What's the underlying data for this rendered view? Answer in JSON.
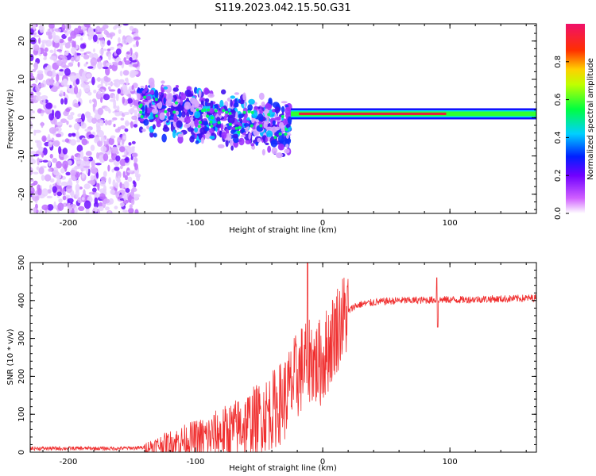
{
  "title": "S119.2023.042.15.50.G31",
  "colors": {
    "snr_line": "#f03030",
    "spectrum_line": "#e81e3c",
    "frame": "#000000"
  },
  "chart_data": [
    {
      "type": "heatmap",
      "xlabel": "Height of straight line (km)",
      "ylabel": "Frequency (Hz)",
      "xlim": [
        -230,
        168
      ],
      "ylim": [
        -25,
        24.5
      ],
      "xticks": [
        -200,
        -100,
        0,
        100
      ],
      "yticks": [
        -20,
        -10,
        0,
        10,
        20
      ],
      "colorbar": {
        "label": "Normalized spectral amplitude",
        "range": [
          0,
          1
        ],
        "ticks": [
          0.0,
          0.2,
          0.4,
          0.6,
          0.8
        ],
        "tick_labels": [
          "0.0",
          "0.2",
          "0.4",
          "0.6",
          "0.8"
        ],
        "colormap": "hsv-like: white, violet, blue, cyan, green, yellow, orange, red, pink"
      },
      "features": {
        "noise_region_x": [
          -230,
          -145
        ],
        "transition_band_x": [
          -145,
          -25
        ],
        "transition_band_freq_start_hz": 3,
        "transition_band_freq_end_hz": -3,
        "carrier_line_x": [
          -25,
          168
        ],
        "carrier_line_freq_hz": 1
      }
    },
    {
      "type": "line",
      "xlabel": "Height of straight line (km)",
      "ylabel": "SNR (10 * v/v)",
      "xlim": [
        -230,
        168
      ],
      "ylim": [
        0,
        500
      ],
      "xticks": [
        -200,
        -100,
        0,
        100
      ],
      "yticks": [
        0,
        100,
        200,
        300,
        400,
        500
      ],
      "series": [
        {
          "x": [
            -230,
            -200,
            -160,
            -140,
            -130,
            -120,
            -110,
            -100,
            -90,
            -80,
            -70,
            -60,
            -50,
            -40,
            -30,
            -25,
            -20,
            -15,
            -10,
            -5,
            0,
            5,
            10,
            15,
            20,
            25,
            30,
            40,
            50,
            60,
            70,
            80,
            90,
            100,
            110,
            120,
            130,
            140,
            150,
            160,
            168
          ],
          "y": [
            10,
            10,
            10,
            12,
            18,
            25,
            30,
            35,
            40,
            50,
            60,
            75,
            90,
            110,
            140,
            170,
            200,
            230,
            250,
            230,
            240,
            280,
            320,
            350,
            370,
            385,
            390,
            395,
            398,
            400,
            400,
            401,
            402,
            402,
            402,
            403,
            404,
            404,
            405,
            406,
            407
          ]
        }
      ]
    }
  ]
}
